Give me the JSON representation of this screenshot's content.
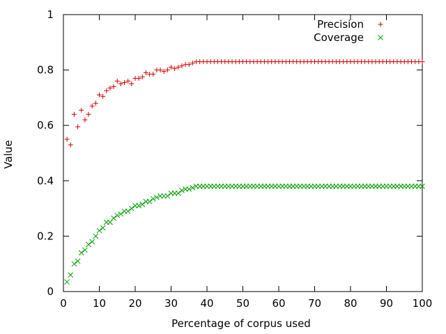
{
  "chart_data": {
    "type": "scatter",
    "title": "",
    "xlabel": "Percentage of corpus used",
    "ylabel": "Value",
    "xlim": [
      0,
      100
    ],
    "ylim": [
      0,
      1
    ],
    "x_ticks": [
      0,
      10,
      20,
      30,
      40,
      50,
      60,
      70,
      80,
      90,
      100
    ],
    "y_ticks": [
      0,
      0.2,
      0.4,
      0.6,
      0.8,
      1
    ],
    "x_tick_labels": [
      "0",
      "10",
      "20",
      "30",
      "40",
      "50",
      "60",
      "70",
      "80",
      "90",
      "100"
    ],
    "y_tick_labels": [
      "0",
      "0.2",
      "0.4",
      "0.6",
      "0.8",
      "1"
    ],
    "grid": false,
    "legend": "top-right",
    "series": [
      {
        "name": "Precision",
        "marker": "plus",
        "color": "#d40000",
        "x": [
          1,
          2,
          3,
          4,
          5,
          6,
          7,
          8,
          9,
          10,
          11,
          12,
          13,
          14,
          15,
          16,
          17,
          18,
          19,
          20,
          21,
          22,
          23,
          24,
          25,
          26,
          27,
          28,
          29,
          30,
          31,
          32,
          33,
          34,
          35,
          36,
          37,
          38,
          39,
          40,
          41,
          42,
          43,
          44,
          45,
          46,
          47,
          48,
          49,
          50,
          51,
          52,
          53,
          54,
          55,
          56,
          57,
          58,
          59,
          60,
          61,
          62,
          63,
          64,
          65,
          66,
          67,
          68,
          69,
          70,
          71,
          72,
          73,
          74,
          75,
          76,
          77,
          78,
          79,
          80,
          81,
          82,
          83,
          84,
          85,
          86,
          87,
          88,
          89,
          90,
          91,
          92,
          93,
          94,
          95,
          96,
          97,
          98,
          99,
          100
        ],
        "y": [
          0.55,
          0.53,
          0.64,
          0.595,
          0.655,
          0.62,
          0.64,
          0.67,
          0.68,
          0.71,
          0.705,
          0.725,
          0.735,
          0.74,
          0.76,
          0.75,
          0.755,
          0.76,
          0.75,
          0.77,
          0.77,
          0.775,
          0.79,
          0.785,
          0.785,
          0.8,
          0.8,
          0.795,
          0.8,
          0.81,
          0.805,
          0.81,
          0.815,
          0.82,
          0.82,
          0.825,
          0.83,
          0.83,
          0.83,
          0.83,
          0.83,
          0.83,
          0.83,
          0.83,
          0.83,
          0.83,
          0.83,
          0.83,
          0.83,
          0.83,
          0.83,
          0.83,
          0.83,
          0.83,
          0.83,
          0.83,
          0.83,
          0.83,
          0.83,
          0.83,
          0.83,
          0.83,
          0.83,
          0.83,
          0.83,
          0.83,
          0.83,
          0.83,
          0.83,
          0.83,
          0.83,
          0.83,
          0.83,
          0.83,
          0.83,
          0.83,
          0.83,
          0.83,
          0.83,
          0.83,
          0.83,
          0.83,
          0.83,
          0.83,
          0.83,
          0.83,
          0.83,
          0.83,
          0.83,
          0.83,
          0.83,
          0.83,
          0.83,
          0.83,
          0.83,
          0.83,
          0.83,
          0.83,
          0.83,
          0.83
        ]
      },
      {
        "name": "Coverage",
        "marker": "cross",
        "color": "#00a000",
        "x": [
          1,
          2,
          3,
          4,
          5,
          6,
          7,
          8,
          9,
          10,
          11,
          12,
          13,
          14,
          15,
          16,
          17,
          18,
          19,
          20,
          21,
          22,
          23,
          24,
          25,
          26,
          27,
          28,
          29,
          30,
          31,
          32,
          33,
          34,
          35,
          36,
          37,
          38,
          39,
          40,
          41,
          42,
          43,
          44,
          45,
          46,
          47,
          48,
          49,
          50,
          51,
          52,
          53,
          54,
          55,
          56,
          57,
          58,
          59,
          60,
          61,
          62,
          63,
          64,
          65,
          66,
          67,
          68,
          69,
          70,
          71,
          72,
          73,
          74,
          75,
          76,
          77,
          78,
          79,
          80,
          81,
          82,
          83,
          84,
          85,
          86,
          87,
          88,
          89,
          90,
          91,
          92,
          93,
          94,
          95,
          96,
          97,
          98,
          99,
          100
        ],
        "y": [
          0.035,
          0.06,
          0.1,
          0.11,
          0.14,
          0.15,
          0.17,
          0.18,
          0.2,
          0.22,
          0.23,
          0.25,
          0.25,
          0.265,
          0.275,
          0.28,
          0.29,
          0.29,
          0.3,
          0.31,
          0.31,
          0.315,
          0.325,
          0.325,
          0.335,
          0.34,
          0.345,
          0.345,
          0.345,
          0.355,
          0.355,
          0.355,
          0.365,
          0.37,
          0.37,
          0.375,
          0.38,
          0.38,
          0.38,
          0.38,
          0.38,
          0.38,
          0.38,
          0.38,
          0.38,
          0.38,
          0.38,
          0.38,
          0.38,
          0.38,
          0.38,
          0.38,
          0.38,
          0.38,
          0.38,
          0.38,
          0.38,
          0.38,
          0.38,
          0.38,
          0.38,
          0.38,
          0.38,
          0.38,
          0.38,
          0.38,
          0.38,
          0.38,
          0.38,
          0.38,
          0.38,
          0.38,
          0.38,
          0.38,
          0.38,
          0.38,
          0.38,
          0.38,
          0.38,
          0.38,
          0.38,
          0.38,
          0.38,
          0.38,
          0.38,
          0.38,
          0.38,
          0.38,
          0.38,
          0.38,
          0.38,
          0.38,
          0.38,
          0.38,
          0.38,
          0.38,
          0.38,
          0.38,
          0.38,
          0.38
        ]
      }
    ]
  }
}
